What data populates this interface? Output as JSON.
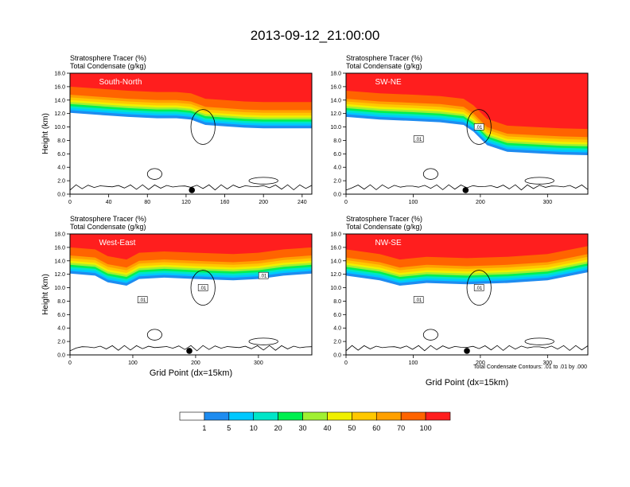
{
  "title": "2013-09-12_21:00:00",
  "colors": {
    "levels": [
      "#ffffff",
      "#1e8cf0",
      "#00c8ff",
      "#00e6c8",
      "#00f050",
      "#a0f032",
      "#f0f000",
      "#ffc800",
      "#ffa000",
      "#ff6400",
      "#ff1e1e"
    ]
  },
  "chart_data": [
    {
      "type": "contour",
      "inner_label": "South-North",
      "title_line1": "Stratosphere Tracer   (%)",
      "title_line2": "Total Condensate   (g/kg)",
      "ylabel": "Height (km)",
      "xlabel": "",
      "xlim": [
        0,
        250
      ],
      "ylim": [
        0,
        18
      ],
      "xticks": [
        "0",
        "40",
        "80",
        "120",
        "160",
        "200",
        "240"
      ],
      "xtick_values": [
        0,
        40,
        80,
        120,
        160,
        200,
        240
      ],
      "yticks": [
        "0.0",
        "2.0",
        "4.0",
        "6.0",
        "8.0",
        "10.0",
        "12.0",
        "14.0",
        "16.0",
        "18.0"
      ],
      "tropopause": [
        [
          0,
          14.8
        ],
        [
          30,
          14.5
        ],
        [
          60,
          14.2
        ],
        [
          90,
          14.0
        ],
        [
          110,
          14.0
        ],
        [
          125,
          13.8
        ],
        [
          140,
          13.0
        ],
        [
          160,
          12.8
        ],
        [
          180,
          12.6
        ],
        [
          200,
          12.5
        ],
        [
          250,
          12.5
        ]
      ],
      "marker_x": 126,
      "contour_labels": []
    },
    {
      "type": "contour",
      "inner_label": "SW-NE",
      "title_line1": "Stratosphere Tracer   (%)",
      "title_line2": "Total Condensate   (g/kg)",
      "ylabel": "",
      "xlabel": "",
      "xlim": [
        0,
        360
      ],
      "ylim": [
        0,
        18
      ],
      "xticks": [
        "0",
        "100",
        "200",
        "300"
      ],
      "xtick_values": [
        0,
        100,
        200,
        300
      ],
      "yticks": [
        "0.0",
        "2.0",
        "4.0",
        "6.0",
        "8.0",
        "10.0",
        "12.0",
        "14.0",
        "16.0",
        "18.0"
      ],
      "tropopause": [
        [
          0,
          14.2
        ],
        [
          50,
          13.8
        ],
        [
          100,
          13.6
        ],
        [
          140,
          13.4
        ],
        [
          175,
          13.0
        ],
        [
          190,
          12.0
        ],
        [
          210,
          10.0
        ],
        [
          240,
          9.0
        ],
        [
          280,
          8.8
        ],
        [
          320,
          8.6
        ],
        [
          360,
          8.5
        ]
      ],
      "marker_x": 178,
      "contour_labels": [
        ".01",
        ".01"
      ]
    },
    {
      "type": "contour",
      "inner_label": "West-East",
      "title_line1": "Stratosphere Tracer   (%)",
      "title_line2": "Total Condensate   (g/kg)",
      "ylabel": "Height (km)",
      "xlabel": "Grid Point (dx=15km)",
      "xlim": [
        0,
        385
      ],
      "ylim": [
        0,
        18
      ],
      "xticks": [
        "0",
        "100",
        "200",
        "300"
      ],
      "xtick_values": [
        0,
        100,
        200,
        300
      ],
      "yticks": [
        "0.0",
        "2.0",
        "4.0",
        "6.0",
        "8.0",
        "10.0",
        "12.0",
        "14.0",
        "16.0",
        "18.0"
      ],
      "tropopause": [
        [
          0,
          14.8
        ],
        [
          40,
          14.5
        ],
        [
          60,
          13.5
        ],
        [
          90,
          13.0
        ],
        [
          110,
          14.0
        ],
        [
          150,
          14.2
        ],
        [
          200,
          14.0
        ],
        [
          260,
          13.8
        ],
        [
          300,
          14.0
        ],
        [
          340,
          14.5
        ],
        [
          385,
          14.8
        ]
      ],
      "marker_x": 190,
      "contour_labels": [
        ".01",
        ".01",
        ".01"
      ]
    },
    {
      "type": "contour",
      "inner_label": "NW-SE",
      "title_line1": "Stratosphere Tracer   (%)",
      "title_line2": "Total Condensate   (g/kg)",
      "ylabel": "",
      "xlabel": "Grid Point (dx=15km)",
      "xlim": [
        0,
        360
      ],
      "ylim": [
        0,
        18
      ],
      "xticks": [
        "0",
        "100",
        "200",
        "300"
      ],
      "xtick_values": [
        0,
        100,
        200,
        300
      ],
      "yticks": [
        "0.0",
        "2.0",
        "4.0",
        "6.0",
        "8.0",
        "10.0",
        "12.0",
        "14.0",
        "16.0",
        "18.0"
      ],
      "tropopause": [
        [
          0,
          14.5
        ],
        [
          50,
          13.8
        ],
        [
          80,
          13.0
        ],
        [
          120,
          13.4
        ],
        [
          180,
          13.2
        ],
        [
          240,
          13.4
        ],
        [
          300,
          13.8
        ],
        [
          340,
          14.6
        ],
        [
          360,
          15.0
        ]
      ],
      "marker_x": 180,
      "contour_labels": [
        ".01",
        ".01"
      ]
    }
  ],
  "contour_note": "Total Condensate Contours: .01 to .01 by .000",
  "colorbar": {
    "labels": [
      "1",
      "5",
      "10",
      "20",
      "30",
      "40",
      "50",
      "60",
      "70",
      "100"
    ]
  }
}
